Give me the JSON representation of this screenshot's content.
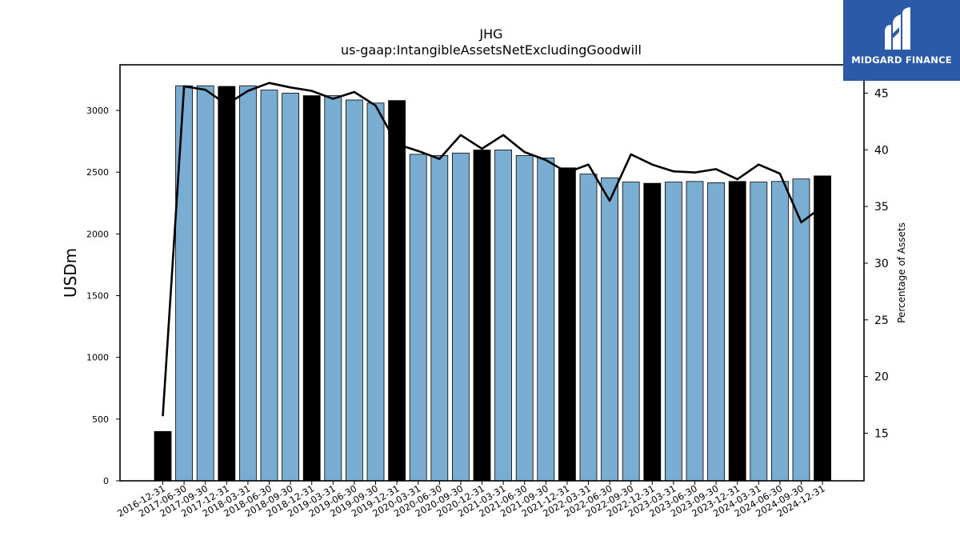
{
  "chart_data": {
    "type": "bar",
    "title": "JHG",
    "subtitle": "us-gaap:IntangibleAssetsNetExcludingGoodwill",
    "ylabel": "USDm",
    "y2label": "Percentage of Assets",
    "ylim": [
      0,
      3370
    ],
    "y2lim": [
      10.8,
      47.5
    ],
    "yticks": [
      0,
      500,
      1000,
      1500,
      2000,
      2500,
      3000
    ],
    "y2ticks": [
      15,
      20,
      25,
      30,
      35,
      40,
      45
    ],
    "categories": [
      "2016-12-31",
      "2017-06-30",
      "2017-09-30",
      "2017-12-31",
      "2018-03-31",
      "2018-06-30",
      "2018-09-30",
      "2018-12-31",
      "2019-03-31",
      "2019-06-30",
      "2019-09-30",
      "2019-12-31",
      "2020-03-31",
      "2020-06-30",
      "2020-09-30",
      "2020-12-31",
      "2021-03-31",
      "2021-06-30",
      "2021-09-30",
      "2021-12-31",
      "2022-03-31",
      "2022-06-30",
      "2022-09-30",
      "2022-12-31",
      "2023-03-31",
      "2023-06-30",
      "2023-09-30",
      "2023-12-31",
      "2024-03-31",
      "2024-06-30",
      "2024-09-30",
      "2024-12-31"
    ],
    "series": [
      {
        "type": "bar",
        "values": [
          400,
          3200,
          3200,
          3195,
          3200,
          3165,
          3140,
          3120,
          3120,
          3085,
          3060,
          3080,
          2645,
          2635,
          2655,
          2680,
          2680,
          2635,
          2615,
          2535,
          2485,
          2455,
          2420,
          2410,
          2420,
          2425,
          2415,
          2425,
          2420,
          2425,
          2445,
          2470
        ]
      },
      {
        "type": "line",
        "axis": "right",
        "values": [
          16.5,
          45.6,
          45.3,
          44.0,
          45.2,
          45.9,
          45.5,
          45.2,
          44.5,
          45.1,
          43.9,
          40.5,
          39.9,
          39.2,
          41.3,
          40.1,
          41.3,
          39.8,
          39.1,
          38.0,
          38.7,
          35.5,
          39.6,
          38.7,
          38.1,
          38.0,
          38.3,
          37.4,
          38.7,
          37.9,
          33.6,
          35.0
        ]
      }
    ],
    "bar_colors": {
      "quarter": "#7aadd2",
      "year_end": "#000000"
    },
    "line_color": "#000000",
    "grid": false,
    "legend": "none"
  },
  "logo": {
    "text": "MIDGARD FINANCE",
    "color": "#2b5aa8"
  }
}
